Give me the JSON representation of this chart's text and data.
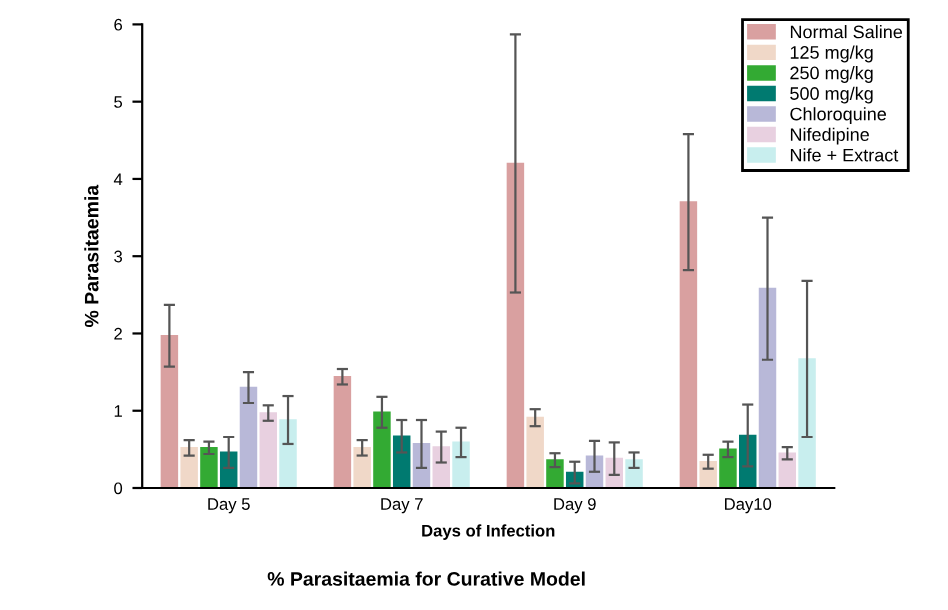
{
  "chart_data": {
    "type": "bar",
    "title": "% Parasitaemia for Curative Model",
    "xlabel": "Days of Infection",
    "ylabel": "% Parasitaemia",
    "categories": [
      "Day 5",
      "Day 7",
      "Day 9",
      "Day10"
    ],
    "ylim": [
      0,
      6
    ],
    "yticks": [
      0,
      1,
      2,
      3,
      4,
      5,
      6
    ],
    "grid": false,
    "legend": "top right",
    "series": [
      {
        "name": "Normal Saline",
        "color": "#d9a0a0",
        "values": [
          1.97,
          1.44,
          4.2,
          3.7
        ],
        "errors": [
          0.4,
          0.1,
          1.67,
          0.88
        ]
      },
      {
        "name": "125 mg/kg",
        "color": "#f0d8c8",
        "values": [
          0.52,
          0.52,
          0.91,
          0.34
        ],
        "errors": [
          0.1,
          0.1,
          0.11,
          0.09
        ]
      },
      {
        "name": "250 mg/kg",
        "color": "#33aa33",
        "values": [
          0.52,
          0.98,
          0.36,
          0.5
        ],
        "errors": [
          0.08,
          0.2,
          0.09,
          0.1
        ]
      },
      {
        "name": "500 mg/kg",
        "color": "#007a70",
        "values": [
          0.46,
          0.67,
          0.2,
          0.68
        ],
        "errors": [
          0.2,
          0.21,
          0.14,
          0.4
        ]
      },
      {
        "name": "Chloroquine",
        "color": "#b8b8d8",
        "values": [
          1.3,
          0.57,
          0.41,
          2.58
        ],
        "errors": [
          0.2,
          0.31,
          0.2,
          0.92
        ]
      },
      {
        "name": "Nifedipine",
        "color": "#e8d0e0",
        "values": [
          0.97,
          0.53,
          0.38,
          0.45
        ],
        "errors": [
          0.1,
          0.2,
          0.21,
          0.08
        ]
      },
      {
        "name": "Nife + Extract",
        "color": "#c8eeee",
        "values": [
          0.88,
          0.59,
          0.36,
          1.67
        ],
        "errors": [
          0.31,
          0.19,
          0.1,
          1.01
        ]
      }
    ]
  }
}
